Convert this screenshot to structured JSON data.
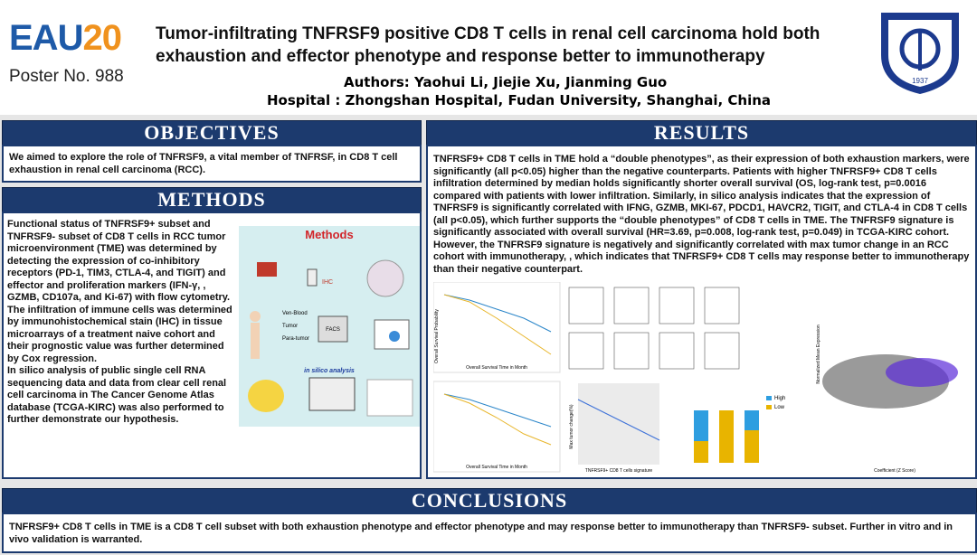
{
  "header": {
    "logo_left": "EAU",
    "logo_right": "20",
    "poster_no": "Poster No. 988",
    "title": "Tumor-infiltrating TNFRSF9 positive CD8 T cells in renal cell carcinoma hold both exhaustion and effector phenotype and response better to immunotherapy",
    "authors": "Authors: Yaohui Li, Jiejie Xu, Jianming Guo",
    "hospital": "Hospital : Zhongshan Hospital, Fudan University, Shanghai, China",
    "emblem_year": "1937"
  },
  "objectives": {
    "heading": "OBJECTIVES",
    "body": "We aimed to explore the role of TNFRSF9, a vital member of TNFRSF, in CD8 T cell exhaustion in renal cell carcinoma (RCC)."
  },
  "methods": {
    "heading": "METHODS",
    "paragraphs": [
      "Functional status of TNFRSF9+ subset and TNFRSF9- subset of CD8 T cells in RCC tumor microenvironment (TME) was determined by detecting the expression of co-inhibitory receptors (PD-1, TIM3, CTLA-4, and TIGIT) and effector and proliferation markers (IFN-γ, , GZMB, CD107a, and Ki-67) with flow cytometry.",
      "The infiltration of immune cells was determined by immunohistochemical stain (IHC) in tissue microarrays of a treatment naive cohort and their prognostic value was further determined by Cox regression.",
      "In silico analysis of public single cell RNA sequencing data and data from clear cell renal cell carcinoma in The Cancer Genome Atlas database (TCGA-KIRC) was also performed to further demonstrate our hypothesis."
    ],
    "figure": {
      "title": "Methods",
      "ihc": "IHC",
      "blood": "Ven-Blood",
      "tumor": "Tumor",
      "para": "Para-tumor",
      "facs": "FACS",
      "silico": "in silico analysis"
    }
  },
  "results": {
    "heading": "RESULTS",
    "body": "TNFRSF9+ CD8 T cells in TME hold a “double phenotypes”, as their expression of both exhaustion markers, were significantly (all p<0.05) higher than the negative counterparts. Patients with higher TNFRSF9+ CD8 T cells infiltration determined by median holds significantly shorter overall survival (OS, log-rank test, p=0.0016 compared with patients with lower infiltration. Similarly, in silico analysis indicates that the expression of TNFRSF9 is significantly correlated with IFNG, GZMB, MKI-67, PDCD1, HAVCR2, TIGIT, and CTLA-4 in CD8 T cells (all p<0.05), which further supports the “double phenotypes” of CD8 T cells in TME. The TNFRSF9 signature is significantly associated with overall survival (HR=3.69, p=0.008, log-rank test, p=0.049) in TCGA-KIRC cohort. However, the TNFRSF9 signature is negatively and significantly correlated with max tumor change in an RCC cohort with immunotherapy, , which indicates that TNFRSF9+ CD8 T cells may response better to immunotherapy than their negative counterpart.",
    "figure": {
      "os_time": "Overall Survival Time in Month",
      "os_prob": "Overall Survival Probability",
      "tumor_change": "Max tumor change(%)",
      "signature": "TNFRSF9+ CD8 T cells signature",
      "high": "High",
      "low": "Low",
      "coef": "Coefficient (Z Score)",
      "mean_expr": "Normalized Mean Expression"
    }
  },
  "conclusions": {
    "heading": "CONCLUSIONS",
    "body": "TNFRSF9+ CD8 T cells in TME is a CD8 T cell subset with both exhaustion phenotype and effector phenotype and may response better to immunotherapy than TNFRSF9- subset. Further in vitro and in vivo validation is warranted."
  }
}
